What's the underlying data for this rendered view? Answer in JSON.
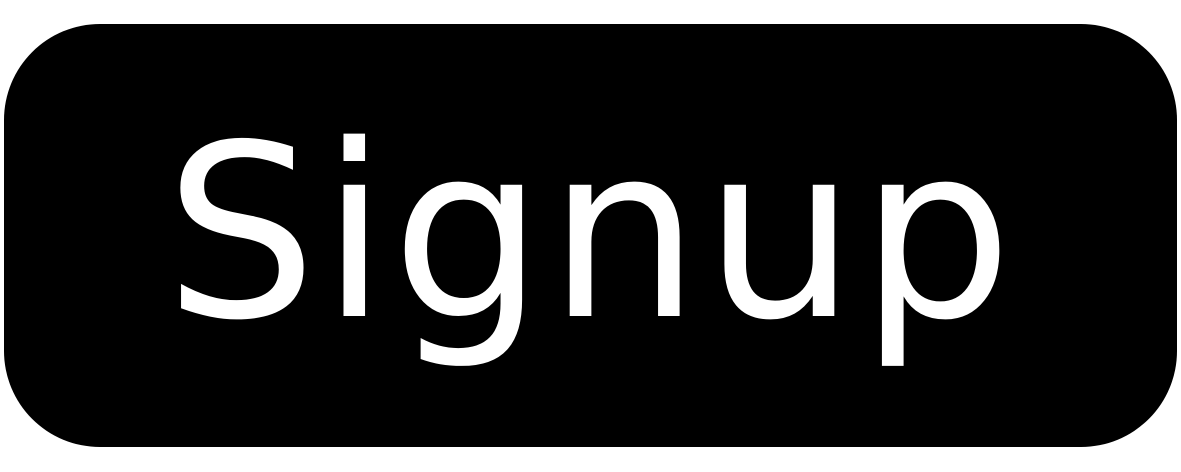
{
  "button": {
    "label": "Signup",
    "background_color": "#000000",
    "text_color": "#ffffff"
  }
}
